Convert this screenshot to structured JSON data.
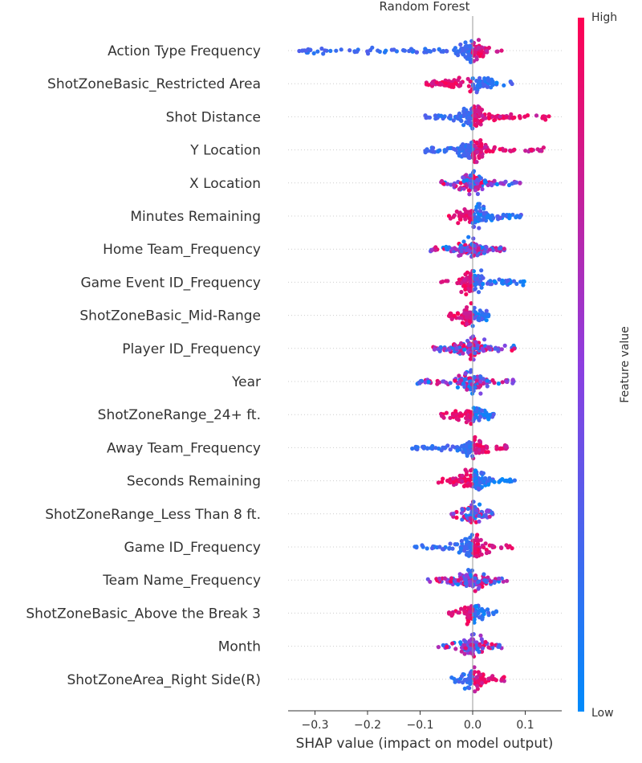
{
  "chart_data": {
    "type": "scatter",
    "subtype": "shap-beeswarm",
    "title": "Random Forest",
    "xlabel": "SHAP value (impact on model output)",
    "xlim": [
      -0.35,
      0.16
    ],
    "xticks": [
      -0.3,
      -0.2,
      -0.1,
      0.0,
      0.1
    ],
    "xtick_labels": [
      "−0.3",
      "−0.2",
      "−0.1",
      "0.0",
      "0.1"
    ],
    "grid": false,
    "colorbar": {
      "label": "Feature value",
      "high_label": "High",
      "low_label": "Low",
      "high_color": "#ff0052",
      "low_color": "#008bfb",
      "placement": "right"
    },
    "features": [
      {
        "name": "Action Type Frequency",
        "min": -0.33,
        "max": 0.055,
        "low_side": "left",
        "density": "wide-left"
      },
      {
        "name": "ShotZoneBasic_Restricted Area",
        "min": -0.088,
        "max": 0.075,
        "low_side": "right",
        "density": "two-clusters"
      },
      {
        "name": "Shot Distance",
        "min": -0.09,
        "max": 0.145,
        "low_side": "left",
        "density": "wide"
      },
      {
        "name": "Y Location",
        "min": -0.09,
        "max": 0.135,
        "low_side": "left",
        "density": "wide"
      },
      {
        "name": "X Location",
        "min": -0.06,
        "max": 0.09,
        "low_side": "mixed",
        "density": "medium"
      },
      {
        "name": "Minutes Remaining",
        "min": -0.045,
        "max": 0.092,
        "low_side": "right",
        "density": "medium"
      },
      {
        "name": "Home Team_Frequency",
        "min": -0.08,
        "max": 0.06,
        "low_side": "mixed",
        "density": "medium"
      },
      {
        "name": "Game Event ID_Frequency",
        "min": -0.06,
        "max": 0.098,
        "low_side": "right",
        "density": "medium"
      },
      {
        "name": "ShotZoneBasic_Mid-Range",
        "min": -0.045,
        "max": 0.03,
        "low_side": "right",
        "density": "narrow"
      },
      {
        "name": "Player ID_Frequency",
        "min": -0.075,
        "max": 0.08,
        "low_side": "mixed",
        "density": "medium"
      },
      {
        "name": "Year",
        "min": -0.105,
        "max": 0.078,
        "low_side": "mixed",
        "density": "medium"
      },
      {
        "name": "ShotZoneRange_24+ ft.",
        "min": -0.06,
        "max": 0.04,
        "low_side": "right",
        "density": "narrow"
      },
      {
        "name": "Away Team_Frequency",
        "min": -0.115,
        "max": 0.065,
        "low_side": "left",
        "density": "medium"
      },
      {
        "name": "Seconds Remaining",
        "min": -0.065,
        "max": 0.08,
        "low_side": "right",
        "density": "medium"
      },
      {
        "name": "ShotZoneRange_Less Than 8 ft.",
        "min": -0.04,
        "max": 0.038,
        "low_side": "mixed",
        "density": "narrow"
      },
      {
        "name": "Game ID_Frequency",
        "min": -0.11,
        "max": 0.075,
        "low_side": "left",
        "density": "medium"
      },
      {
        "name": "Team Name_Frequency",
        "min": -0.085,
        "max": 0.065,
        "low_side": "mixed",
        "density": "medium"
      },
      {
        "name": "ShotZoneBasic_Above the Break 3",
        "min": -0.045,
        "max": 0.045,
        "low_side": "right",
        "density": "narrow"
      },
      {
        "name": "Month",
        "min": -0.065,
        "max": 0.055,
        "low_side": "mixed",
        "density": "narrow"
      },
      {
        "name": "ShotZoneArea_Right Side(R)",
        "min": -0.04,
        "max": 0.06,
        "low_side": "left",
        "density": "narrow"
      }
    ]
  }
}
